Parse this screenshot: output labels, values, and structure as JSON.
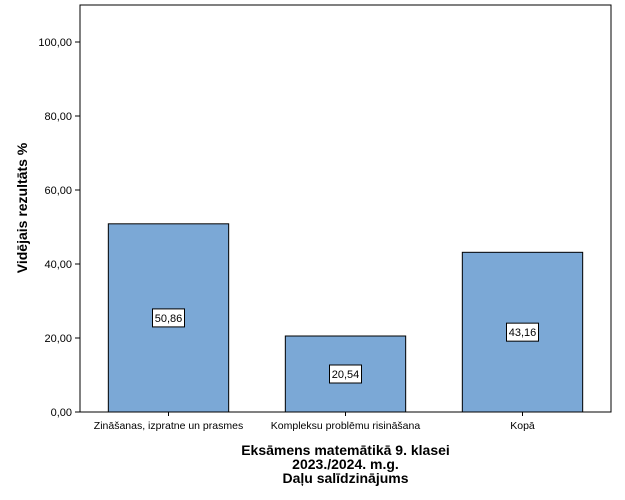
{
  "chart_data": {
    "type": "bar",
    "categories": [
      "Zināšanas, izpratne un prasmes",
      "Kompleksu problēmu risināšana",
      "Kopā"
    ],
    "values": [
      50.86,
      20.54,
      43.16
    ],
    "data_labels": [
      "50,86",
      "20,54",
      "43,16"
    ],
    "ylabel": "Vidējais rezultāts %",
    "xlabel_lines": [
      "Eksāmens matemātikā 9. klasei",
      "2023./2024. m.g.",
      "Daļu salīdzinājums"
    ],
    "ylim": [
      0,
      110
    ],
    "yticks": [
      0,
      20,
      40,
      60,
      80,
      100
    ],
    "ytick_labels": [
      "0,00",
      "20,00",
      "40,00",
      "60,00",
      "80,00",
      "100,00"
    ],
    "grid": false,
    "bar_color": "#7ba8d6",
    "bar_edge_color": "#000000"
  }
}
